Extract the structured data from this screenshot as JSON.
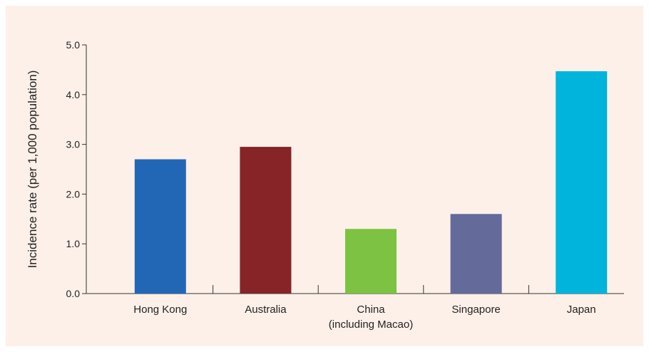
{
  "chart_data": {
    "type": "bar",
    "categories": [
      "Hong Kong",
      "Australia",
      "China\n(including Macao)",
      "Singapore",
      "Japan"
    ],
    "values": [
      2.7,
      2.95,
      1.3,
      1.6,
      4.47
    ],
    "colors": [
      "#2167b6",
      "#862428",
      "#7dc242",
      "#646a99",
      "#00b4dc"
    ],
    "title": "",
    "xlabel": "",
    "ylabel": "Incidence rate (per 1,000 population)",
    "ylim": [
      0,
      5
    ],
    "yticks": [
      "0.0",
      "1.0",
      "2.0",
      "3.0",
      "4.0",
      "5.0"
    ],
    "grid": false,
    "background": "#fdf0e9"
  }
}
